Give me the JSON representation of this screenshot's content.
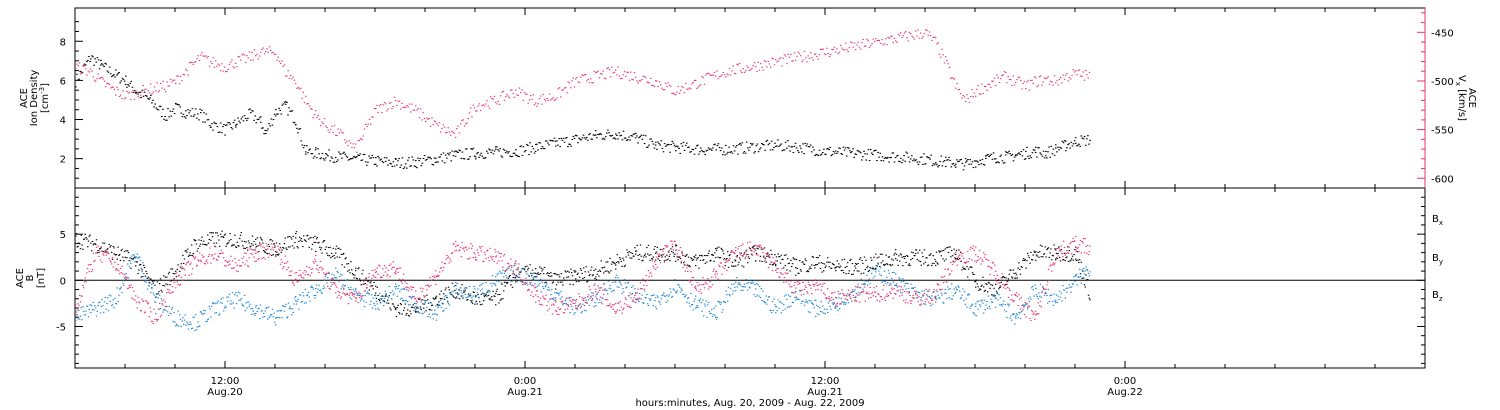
{
  "chart_data": [
    {
      "type": "scatter",
      "panel": "top",
      "ylabel_left": [
        "ACE",
        "Ion Density",
        "[cm",
        "-3",
        "]"
      ],
      "ylabel_right": [
        "ACE",
        "V",
        "x",
        " [km/s]"
      ],
      "left_axis": {
        "ylim": [
          0.5,
          9.7
        ],
        "ticks": [
          2,
          4,
          6,
          8
        ]
      },
      "right_axis": {
        "ylim": [
          -610,
          -425
        ],
        "major_ticks": [
          -450,
          -500,
          -550,
          -600
        ],
        "minor_step": 10
      },
      "colors": {
        "density": "#000000",
        "vx": "#e8336a"
      },
      "series": [
        {
          "key": "density",
          "x": [
            0,
            3,
            5,
            8,
            10,
            12,
            15,
            18,
            20,
            22,
            25,
            27,
            30,
            32,
            35,
            37,
            38,
            40,
            42,
            44,
            46,
            48,
            50,
            53,
            56,
            60,
            64,
            68,
            72,
            76,
            80,
            84,
            88,
            92,
            96,
            100,
            104,
            108,
            112,
            116,
            120,
            125,
            130,
            135,
            140,
            145,
            150,
            155,
            160,
            165,
            170,
            172,
            174,
            176,
            178,
            180,
            182,
            184,
            186,
            188,
            190,
            192,
            194,
            196,
            198,
            200,
            203
          ],
          "y": [
            6.0,
            7.2,
            6.8,
            6.3,
            6.0,
            5.5,
            5.0,
            4.2,
            4.6,
            4.4,
            4.3,
            3.8,
            3.5,
            3.8,
            4.3,
            3.9,
            3.3,
            4.4,
            4.7,
            4.0,
            2.4,
            2.3,
            2.2,
            2.1,
            2.0,
            1.9,
            1.8,
            1.85,
            2.0,
            2.2,
            2.3,
            2.35,
            2.4,
            2.6,
            2.8,
            3.0,
            3.2,
            3.3,
            3.1,
            2.7,
            2.6,
            2.5,
            2.5,
            2.6,
            2.7,
            2.6,
            2.4,
            2.3,
            2.2,
            2.1,
            2.0,
            1.9,
            1.85,
            1.8,
            1.75,
            1.9,
            2.0,
            2.1,
            2.1,
            2.2,
            2.3,
            2.4,
            2.3,
            2.5,
            2.7,
            2.9,
            3.0
          ]
        },
        {
          "key": "vx",
          "x": [
            0,
            3,
            5,
            8,
            10,
            12,
            15,
            18,
            20,
            22,
            25,
            27,
            30,
            32,
            35,
            37,
            40,
            42,
            44,
            46,
            48,
            50,
            53,
            56,
            60,
            64,
            68,
            72,
            76,
            80,
            84,
            88,
            92,
            96,
            100,
            104,
            108,
            112,
            116,
            120,
            125,
            130,
            135,
            140,
            145,
            150,
            155,
            160,
            165,
            170,
            172,
            174,
            176,
            178,
            180,
            182,
            184,
            186,
            188,
            190,
            192,
            194,
            196,
            198,
            200,
            203
          ],
          "y": [
            -485,
            -490,
            -500,
            -510,
            -515,
            -512,
            -508,
            -505,
            -500,
            -490,
            -475,
            -480,
            -485,
            -480,
            -475,
            -470,
            -470,
            -490,
            -500,
            -520,
            -535,
            -545,
            -555,
            -570,
            -530,
            -520,
            -530,
            -545,
            -555,
            -525,
            -520,
            -510,
            -520,
            -515,
            -500,
            -495,
            -490,
            -495,
            -500,
            -510,
            -500,
            -490,
            -485,
            -480,
            -475,
            -470,
            -465,
            -460,
            -455,
            -450,
            -460,
            -480,
            -505,
            -520,
            -510,
            -505,
            -500,
            -495,
            -500,
            -505,
            -500,
            -498,
            -500,
            -495,
            -492,
            -495
          ]
        }
      ]
    },
    {
      "type": "scatter",
      "panel": "bottom",
      "ylabel_left": [
        "ACE",
        "B",
        "[nT]"
      ],
      "ylim": [
        -9.5,
        10
      ],
      "ticks": [
        -5,
        0,
        5
      ],
      "zero_line": true,
      "legend": [
        {
          "label": "B",
          "sub": "x",
          "color": "#000000"
        },
        {
          "label": "B",
          "sub": "y",
          "color": "#1a86d6"
        },
        {
          "label": "B",
          "sub": "z",
          "color": "#e8336a"
        }
      ],
      "series": [
        {
          "key": "bx",
          "x": [
            0,
            4,
            8,
            12,
            16,
            20,
            24,
            28,
            32,
            36,
            40,
            44,
            48,
            52,
            56,
            60,
            64,
            68,
            72,
            76,
            80,
            84,
            88,
            92,
            96,
            100,
            104,
            108,
            112,
            116,
            120,
            124,
            128,
            132,
            136,
            140,
            144,
            148,
            152,
            156,
            160,
            164,
            168,
            172,
            176,
            180,
            184,
            188,
            192,
            196,
            200,
            203
          ],
          "y": [
            4.5,
            4.0,
            3.0,
            2.0,
            -1.0,
            1.0,
            4.0,
            4.5,
            4.5,
            4.0,
            3.5,
            4.5,
            4.0,
            3.0,
            1.0,
            -1.0,
            -3.0,
            -3.0,
            -2.0,
            -1.0,
            -2.0,
            -2.0,
            0.5,
            1.0,
            0.0,
            0.5,
            1.0,
            2.0,
            3.0,
            3.0,
            3.0,
            2.0,
            3.0,
            2.0,
            3.0,
            2.5,
            1.5,
            2.0,
            1.5,
            1.5,
            2.0,
            2.5,
            2.5,
            2.5,
            3.0,
            0.0,
            -1.0,
            1.0,
            3.0,
            3.0,
            3.0,
            -1.5
          ]
        },
        {
          "key": "by",
          "x": [
            0,
            4,
            8,
            12,
            16,
            20,
            24,
            28,
            32,
            36,
            40,
            44,
            48,
            52,
            56,
            60,
            64,
            68,
            72,
            76,
            80,
            84,
            88,
            92,
            96,
            100,
            104,
            108,
            112,
            116,
            120,
            124,
            128,
            132,
            136,
            140,
            144,
            148,
            152,
            156,
            160,
            164,
            168,
            172,
            176,
            180,
            184,
            188,
            192,
            196,
            200,
            203
          ],
          "y": [
            -4.0,
            -3.0,
            -2.0,
            3.0,
            -2.0,
            -4.0,
            -4.5,
            -3.0,
            -2.0,
            -3.0,
            -4.0,
            -2.5,
            -1.0,
            0.5,
            -1.5,
            -2.5,
            -1.0,
            -2.5,
            -3.5,
            -1.0,
            -1.5,
            0.0,
            1.0,
            0.0,
            -1.5,
            -3.0,
            -2.0,
            0.0,
            -1.5,
            -2.5,
            -0.5,
            -2.5,
            -3.5,
            -0.5,
            -1.0,
            -3.0,
            -1.5,
            -3.0,
            -2.5,
            -1.0,
            1.0,
            0.0,
            -1.5,
            -2.0,
            -1.0,
            -3.0,
            -2.0,
            -4.0,
            -1.0,
            -2.0,
            0.0,
            1.5
          ]
        },
        {
          "key": "bz",
          "x": [
            0,
            4,
            8,
            12,
            16,
            20,
            24,
            28,
            32,
            36,
            40,
            44,
            48,
            52,
            56,
            60,
            64,
            68,
            72,
            76,
            80,
            84,
            88,
            92,
            96,
            100,
            104,
            108,
            112,
            116,
            120,
            124,
            128,
            132,
            136,
            140,
            144,
            148,
            152,
            156,
            160,
            164,
            168,
            172,
            176,
            180,
            184,
            188,
            192,
            196,
            200,
            203
          ],
          "y": [
            -3.0,
            3.0,
            2.0,
            -2.0,
            -4.0,
            0.0,
            2.0,
            3.0,
            1.5,
            3.0,
            3.5,
            0.0,
            2.0,
            -1.0,
            -2.0,
            1.0,
            1.5,
            -2.0,
            0.5,
            3.5,
            3.0,
            2.5,
            1.5,
            -1.5,
            -3.0,
            -2.5,
            -1.0,
            -3.0,
            -2.0,
            2.0,
            4.0,
            -1.0,
            0.5,
            3.0,
            3.5,
            1.5,
            -1.0,
            -0.5,
            -2.0,
            -1.5,
            -1.5,
            -1.0,
            -2.0,
            -1.5,
            2.5,
            3.0,
            1.0,
            -2.0,
            -4.0,
            3.0,
            4.0,
            3.5
          ]
        }
      ]
    }
  ],
  "x_axis": {
    "xlim": [
      0,
      270
    ],
    "major_ticks": [
      30,
      90,
      150,
      210
    ],
    "minor_step": 10,
    "tick_labels": [
      {
        "x": 30,
        "time": "12:00",
        "date": "Aug.20"
      },
      {
        "x": 90,
        "time": "0:00",
        "date": "Aug.21"
      },
      {
        "x": 150,
        "time": "12:00",
        "date": "Aug.21"
      },
      {
        "x": 210,
        "time": "0:00",
        "date": "Aug.22"
      }
    ],
    "xlabel": "hours:minutes, Aug. 20, 2009 - Aug. 22, 2009"
  }
}
